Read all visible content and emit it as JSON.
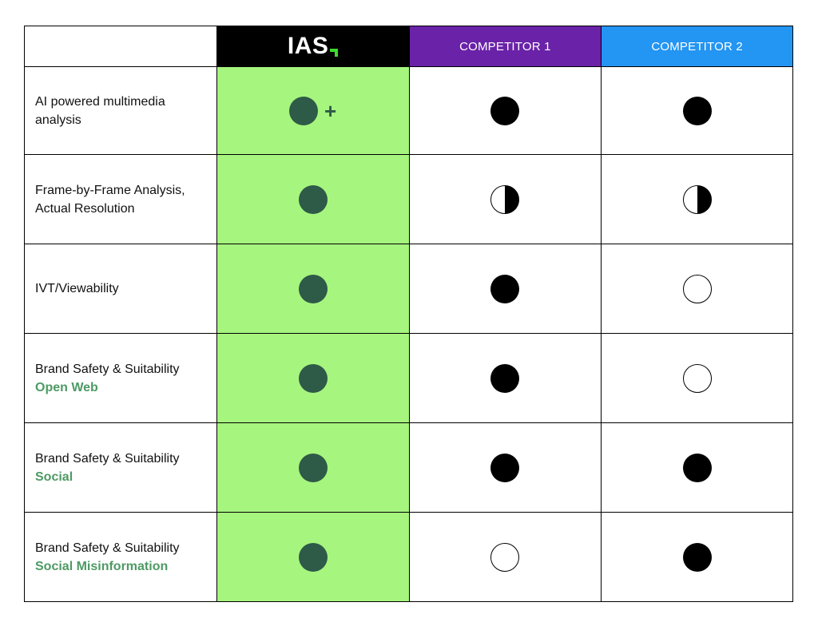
{
  "header": {
    "logo_text": "IAS",
    "competitor1": "COMPETITOR 1",
    "competitor2": "COMPETITOR 2"
  },
  "colors": {
    "ias_column": "#a6f57e",
    "ias_dot": "#2e5a48",
    "competitor1_header": "#6a22a8",
    "competitor2_header": "#2395f2",
    "subtitle": "#4e9a64"
  },
  "rows": [
    {
      "feature": "AI powered multimedia analysis",
      "subtitle": "",
      "ias": "full-plus",
      "competitor1": "full",
      "competitor2": "full",
      "plus": "+"
    },
    {
      "feature": "Frame-by-Frame Analysis, Actual Resolution",
      "subtitle": "",
      "ias": "full",
      "competitor1": "half",
      "competitor2": "half"
    },
    {
      "feature": "IVT/Viewability",
      "subtitle": "",
      "ias": "full",
      "competitor1": "full",
      "competitor2": "empty"
    },
    {
      "feature": "Brand Safety & Suitability",
      "subtitle": "Open Web",
      "ias": "full",
      "competitor1": "full",
      "competitor2": "empty"
    },
    {
      "feature": "Brand Safety & Suitability",
      "subtitle": "Social",
      "ias": "full",
      "competitor1": "full",
      "competitor2": "full"
    },
    {
      "feature": "Brand Safety & Suitability",
      "subtitle": "Social Misinformation",
      "ias": "full",
      "competitor1": "empty",
      "competitor2": "full"
    }
  ]
}
